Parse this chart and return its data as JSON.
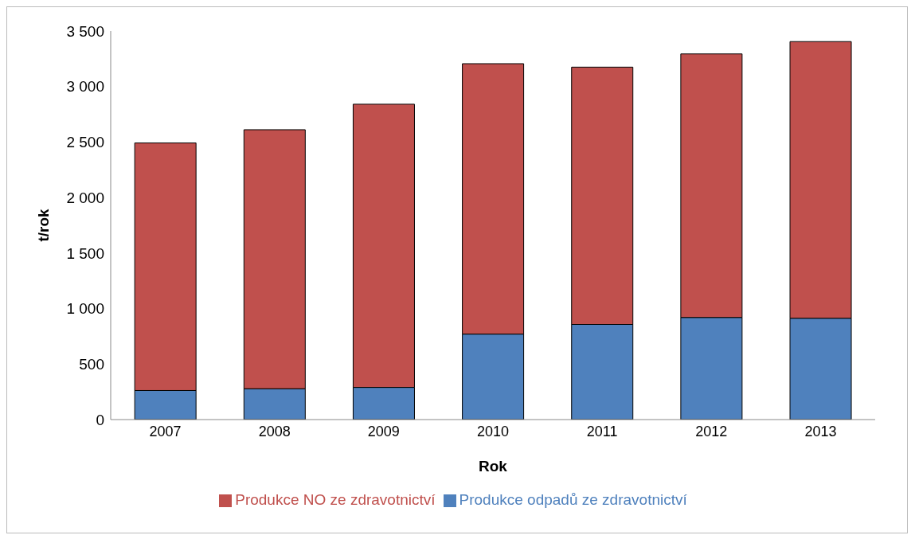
{
  "chart_data": {
    "type": "bar",
    "stacked": true,
    "xlabel": "Rok",
    "ylabel": "t/rok",
    "categories": [
      "2007",
      "2008",
      "2009",
      "2010",
      "2011",
      "2012",
      "2013"
    ],
    "series": [
      {
        "name": "Produkce odpadů ze zdravotnictví",
        "color": "#4f81bd",
        "values": [
          262,
          278,
          290,
          770,
          857,
          920,
          913
        ]
      },
      {
        "name": "Produkce NO ze zdravotnictví",
        "color": "#c0504d",
        "values": [
          2230,
          2333,
          2551,
          2436,
          2318,
          2374,
          2492
        ]
      }
    ],
    "ylim": [
      0,
      3500
    ],
    "yticks": [
      0,
      500,
      {
        "value": 1000,
        "label": "1 000"
      },
      {
        "value": 1500,
        "label": "1 500"
      },
      {
        "value": 2000,
        "label": "2 000"
      },
      {
        "value": 2500,
        "label": "2 500"
      },
      {
        "value": 3000,
        "label": "3 000"
      },
      {
        "value": 3500,
        "label": "3 500"
      }
    ],
    "grid": false,
    "legend": "bottom"
  }
}
